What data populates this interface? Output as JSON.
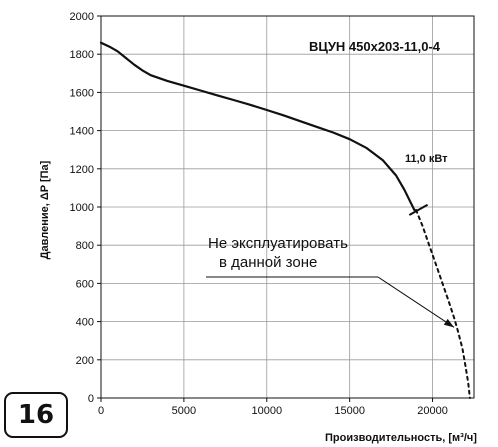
{
  "badge": "16",
  "chart_data": {
    "type": "line",
    "title": "ВЦУН 450х203-11,0-4",
    "ylabel": "Давление, ΔP [Па]",
    "xlabel": "Производительность, [м³/ч]",
    "xlim": [
      0,
      22500
    ],
    "ylim": [
      0,
      2000
    ],
    "x_ticks": [
      "0",
      "5000",
      "10000",
      "15000",
      "20000"
    ],
    "y_ticks": [
      "0",
      "200",
      "400",
      "600",
      "800",
      "1000",
      "1200",
      "1400",
      "1600",
      "1800",
      "2000"
    ],
    "grid": true,
    "series": [
      {
        "name": "11,0 кВт",
        "style": "solid",
        "points": [
          [
            0,
            1860
          ],
          [
            500,
            1840
          ],
          [
            1000,
            1815
          ],
          [
            1500,
            1780
          ],
          [
            2000,
            1745
          ],
          [
            2500,
            1715
          ],
          [
            3000,
            1690
          ],
          [
            4000,
            1660
          ],
          [
            5000,
            1635
          ],
          [
            6000,
            1610
          ],
          [
            7000,
            1585
          ],
          [
            8000,
            1560
          ],
          [
            9000,
            1535
          ],
          [
            10000,
            1508
          ],
          [
            11000,
            1480
          ],
          [
            12000,
            1450
          ],
          [
            13000,
            1420
          ],
          [
            14000,
            1390
          ],
          [
            15000,
            1355
          ],
          [
            16000,
            1310
          ],
          [
            17000,
            1245
          ],
          [
            17800,
            1165
          ],
          [
            18300,
            1090
          ],
          [
            18700,
            1020
          ],
          [
            18900,
            985
          ]
        ]
      },
      {
        "name": "",
        "style": "dashed",
        "points": [
          [
            19000,
            985
          ],
          [
            19400,
            900
          ],
          [
            19800,
            800
          ],
          [
            20200,
            700
          ],
          [
            20600,
            600
          ],
          [
            21000,
            500
          ],
          [
            21300,
            420
          ],
          [
            21500,
            360
          ],
          [
            21800,
            260
          ],
          [
            22000,
            160
          ],
          [
            22150,
            80
          ],
          [
            22250,
            0
          ]
        ]
      }
    ],
    "annotations": {
      "power": "11,0 кВт",
      "note_line1": "Не эксплуатировать",
      "note_line2": "в данной зоне"
    }
  }
}
